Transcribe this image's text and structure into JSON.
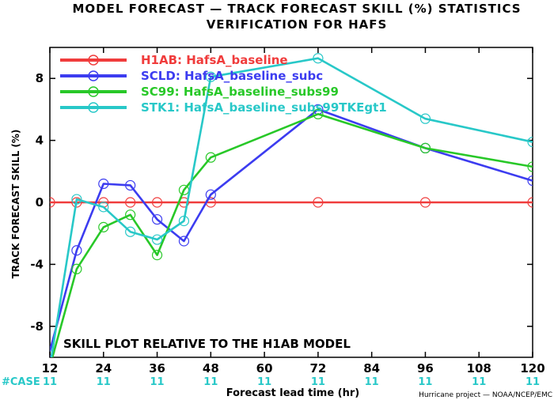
{
  "chart_data": {
    "type": "line",
    "title": "MODEL FORECAST — TRACK FORECAST SKILL (%) STATISTICS",
    "subtitle": "VERIFICATION FOR HAFS",
    "xlabel": "Forecast lead time (hr)",
    "ylabel": "TRACK FORECAST SKILL (%)",
    "xlim": [
      12,
      120
    ],
    "ylim": [
      -10,
      10
    ],
    "x_ticks": [
      12,
      24,
      36,
      48,
      60,
      72,
      84,
      96,
      108,
      120
    ],
    "y_ticks": [
      -8,
      -4,
      0,
      4,
      8
    ],
    "legend_position": "top-left",
    "series": [
      {
        "name": "H1AB: HafsA_baseline",
        "color": "#f03c3c",
        "x": [
          12,
          18,
          24,
          30,
          36,
          42,
          48,
          72,
          96,
          120
        ],
        "y": [
          0,
          0,
          0,
          0,
          0,
          0,
          0,
          0,
          0,
          0
        ]
      },
      {
        "name": "SCLD: HafsA_baseline_subc",
        "color": "#3c3cf0",
        "x": [
          12,
          18,
          24,
          30,
          36,
          42,
          48,
          72,
          96,
          120
        ],
        "y": [
          -9.6,
          -3.1,
          1.2,
          1.1,
          -1.1,
          -2.5,
          0.5,
          6.0,
          3.5,
          1.4
        ]
      },
      {
        "name": "SC99: HafsA_baseline_subs99",
        "color": "#28c828",
        "x": [
          12,
          18,
          24,
          30,
          36,
          42,
          48,
          72,
          96,
          120
        ],
        "y": [
          -10.6,
          -4.3,
          -1.6,
          -0.8,
          -3.4,
          0.8,
          2.9,
          5.7,
          3.5,
          2.3
        ]
      },
      {
        "name": "STK1: HafsA_baseline_subs99TKEgt1",
        "color": "#28c8c8",
        "x": [
          12,
          18,
          24,
          30,
          36,
          42,
          48,
          72,
          96,
          120
        ],
        "y": [
          -10.6,
          0.2,
          -0.3,
          -1.9,
          -2.4,
          -1.2,
          8.1,
          9.3,
          5.4,
          3.9
        ]
      }
    ],
    "annotation": "SKILL PLOT RELATIVE TO THE H1AB MODEL",
    "case_label": "#CASE",
    "case_counts": [
      "11",
      "11",
      "11",
      "11",
      "11",
      "11",
      "11",
      "11",
      "11",
      "11"
    ],
    "credit": "Hurricane project — NOAA/NCEP/EMC"
  }
}
